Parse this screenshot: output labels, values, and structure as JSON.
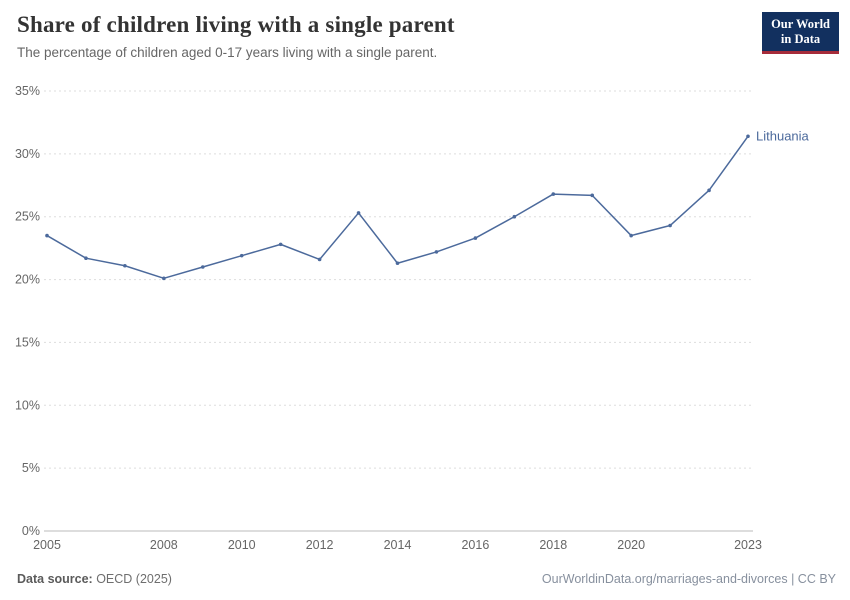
{
  "header": {
    "title": "Share of children living with a single parent",
    "subtitle": "The percentage of children aged 0-17 years living with a single parent.",
    "logo": {
      "line1": "Our World",
      "line2": "in Data"
    }
  },
  "chart_data": {
    "type": "line",
    "title": "Share of children living with a single parent",
    "xlabel": "",
    "ylabel": "",
    "ylim": [
      0,
      35
    ],
    "yticks": [
      0,
      5,
      10,
      15,
      20,
      25,
      30,
      35
    ],
    "ytick_format": "{v}%",
    "xticks": [
      2005,
      2008,
      2010,
      2012,
      2014,
      2016,
      2018,
      2020,
      2023
    ],
    "grid": "dashed-horizontal",
    "legend_position": "end-of-line-label",
    "series": [
      {
        "name": "Lithuania",
        "color": "#4C6A9C",
        "x": [
          2005,
          2006,
          2007,
          2008,
          2009,
          2010,
          2011,
          2012,
          2013,
          2014,
          2015,
          2016,
          2017,
          2018,
          2019,
          2020,
          2021,
          2022,
          2023
        ],
        "values": [
          23.5,
          21.7,
          21.1,
          20.1,
          21.0,
          21.9,
          22.8,
          21.6,
          25.3,
          21.3,
          22.2,
          23.3,
          25.0,
          26.8,
          26.7,
          23.5,
          24.3,
          27.1,
          31.4
        ]
      }
    ]
  },
  "footer": {
    "source_label": "Data source:",
    "source_value": " OECD (2025)",
    "right_text": "OurWorldinData.org/marriages-and-divorces | CC BY"
  },
  "colors": {
    "line": "#4C6A9C",
    "logo_bg": "#12305f",
    "logo_accent": "#a62c3a",
    "gridline": "#dddddd",
    "axis_line": "#bbbbbb"
  }
}
